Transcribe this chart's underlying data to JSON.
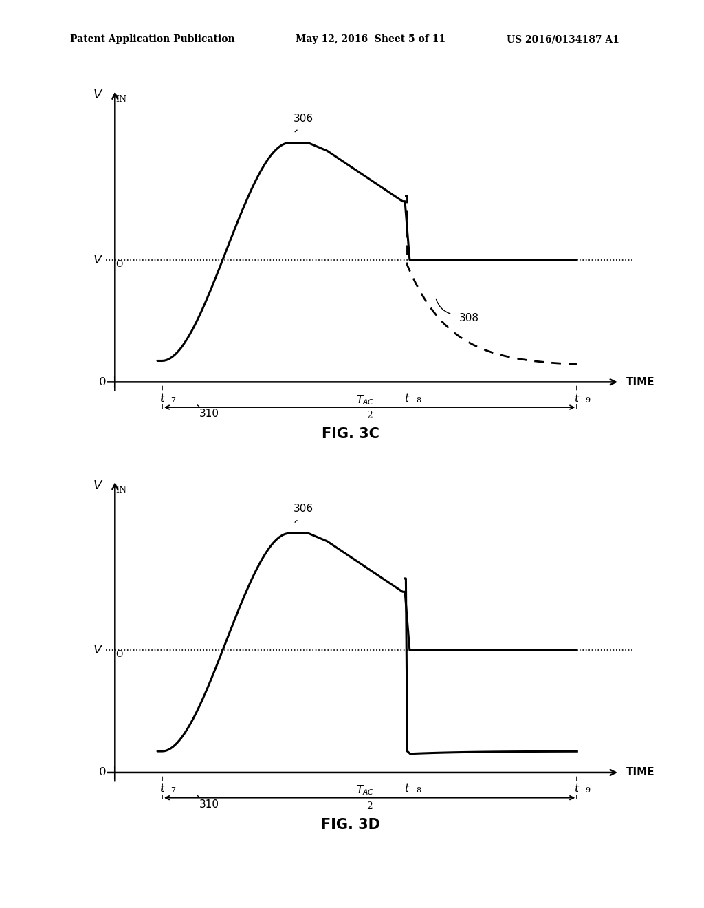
{
  "header_left": "Patent Application Publication",
  "header_mid": "May 12, 2016  Sheet 5 of 11",
  "header_right": "US 2016/0134187 A1",
  "fig3c_label": "FIG. 3C",
  "fig3d_label": "FIG. 3D",
  "vin_label": "V",
  "vin_sub": "IN",
  "vo_label": "V",
  "vo_sub": "O",
  "time_label": "TIME",
  "zero_label": "0",
  "t7_label": "t",
  "t7_sub": "7",
  "t8_label": "t",
  "t8_sub": "8",
  "t9_label": "t",
  "t9_sub": "9",
  "tac_label": "T",
  "tac_sub": "AC",
  "tac_denom": "2",
  "label_310": "310",
  "label_306": "306",
  "label_308": "308",
  "background_color": "#ffffff",
  "line_color": "#000000",
  "dashed_color": "#000000"
}
